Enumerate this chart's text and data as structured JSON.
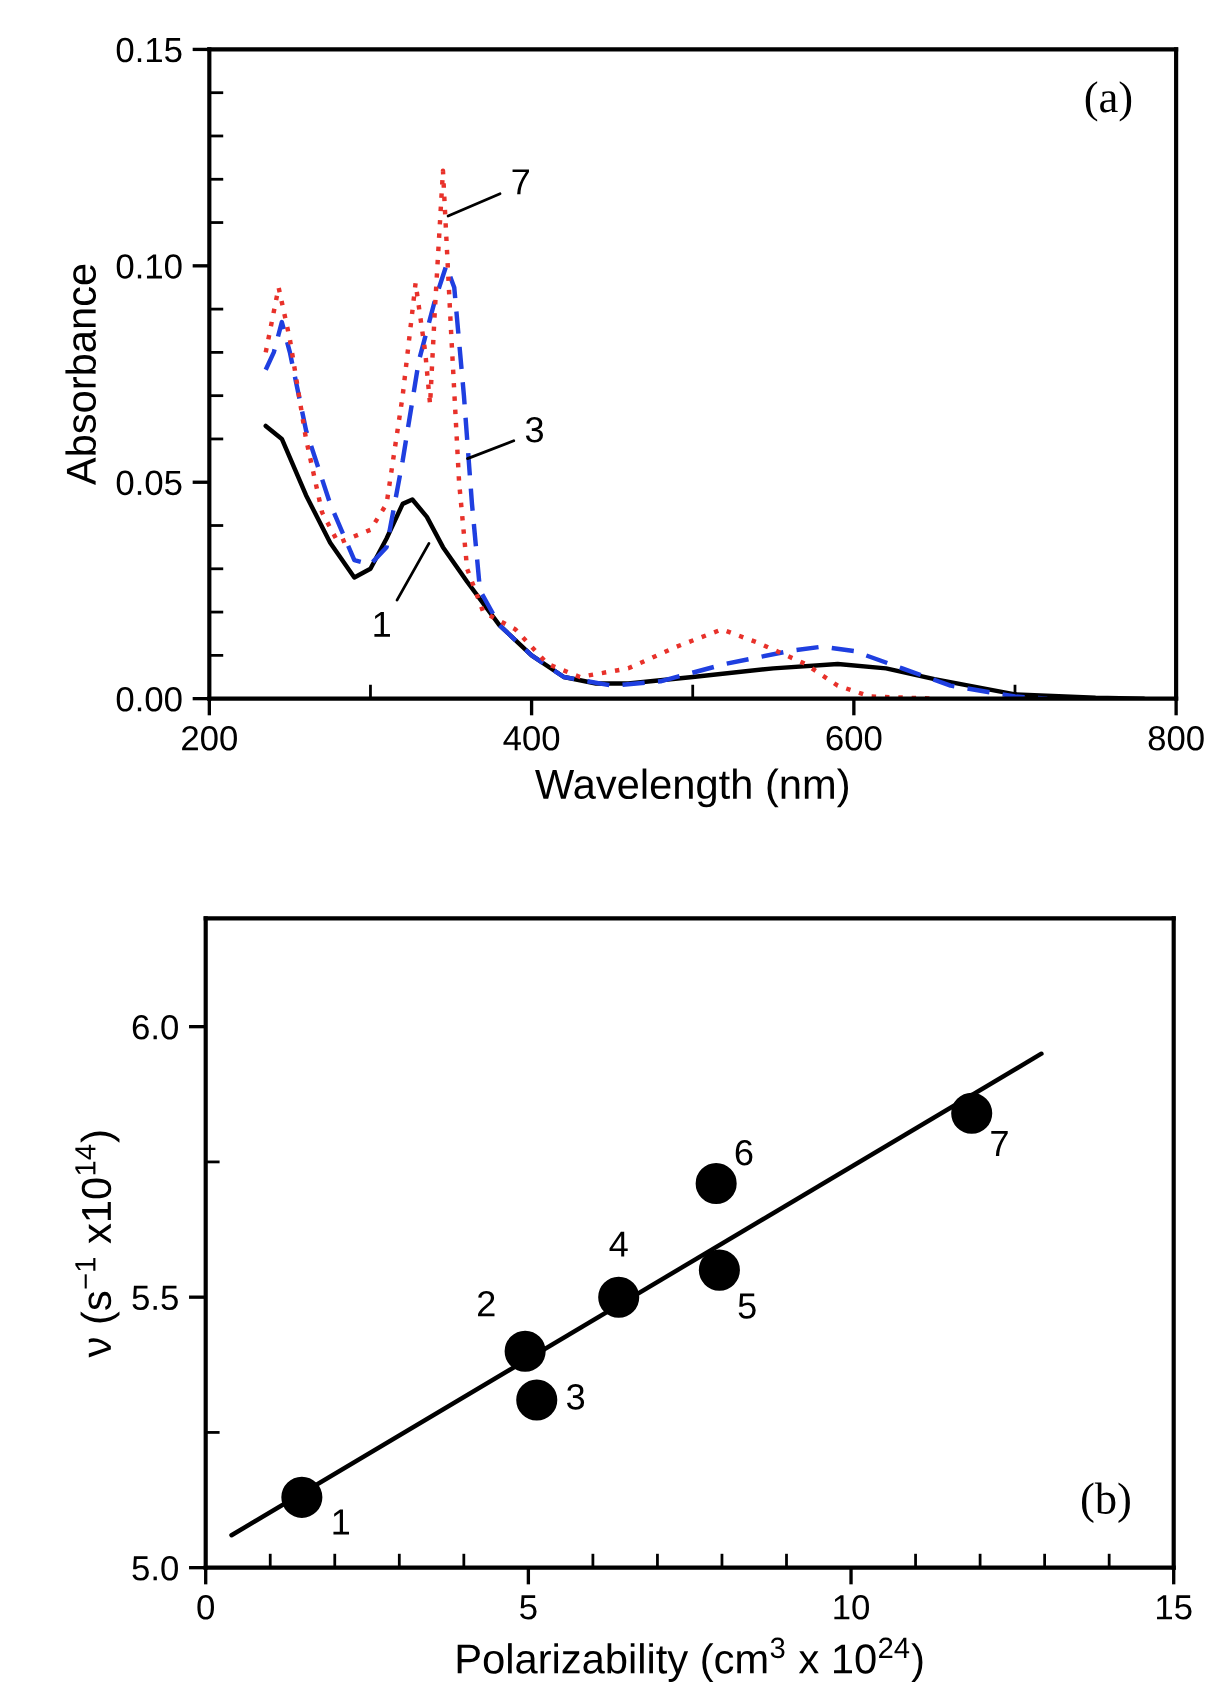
{
  "chart_data": [
    {
      "type": "line",
      "xlabel": "Wavelength (nm)",
      "ylabel": "Absorbance",
      "xlim": [
        200,
        800
      ],
      "ylim": [
        0,
        0.15
      ],
      "xticks": [
        200,
        400,
        600,
        800
      ],
      "yticks": [
        {
          "value": 0,
          "label": "0.00"
        },
        {
          "value": 0.05,
          "label": "0.05"
        },
        {
          "value": 0.1,
          "label": "0.10"
        },
        {
          "value": 0.15,
          "label": "0.15"
        }
      ],
      "grid": false,
      "legend": false,
      "marker": "none",
      "series": [
        {
          "color": "#000000",
          "line_style": "solid",
          "x": [
            235,
            245,
            260,
            275,
            290,
            300,
            310,
            320,
            326,
            335,
            345,
            360,
            380,
            400,
            420,
            440,
            460,
            500,
            550,
            590,
            620,
            650,
            700,
            750,
            780
          ],
          "values": [
            0.063,
            0.06,
            0.047,
            0.036,
            0.028,
            0.03,
            0.037,
            0.045,
            0.046,
            0.042,
            0.035,
            0.027,
            0.017,
            0.01,
            0.005,
            0.0035,
            0.0035,
            0.005,
            0.007,
            0.008,
            0.007,
            0.0045,
            0.001,
            0.0002,
            0
          ]
        },
        {
          "color": "#1f3fe0",
          "line_style": "dashed",
          "x": [
            235,
            240,
            245,
            250,
            260,
            275,
            290,
            300,
            310,
            320,
            330,
            340,
            347,
            352,
            358,
            363,
            368,
            380,
            400,
            420,
            450,
            480,
            520,
            560,
            580,
            600,
            630,
            660,
            700,
            720
          ],
          "values": [
            0.076,
            0.08,
            0.087,
            0.08,
            0.062,
            0.045,
            0.032,
            0.031,
            0.035,
            0.055,
            0.078,
            0.092,
            0.1,
            0.095,
            0.07,
            0.045,
            0.025,
            0.017,
            0.01,
            0.005,
            0.003,
            0.004,
            0.008,
            0.011,
            0.012,
            0.011,
            0.007,
            0.003,
            0.0005,
            0
          ]
        },
        {
          "color": "#e8312a",
          "line_style": "dotted",
          "x": [
            235,
            243,
            250,
            260,
            270,
            280,
            300,
            310,
            320,
            328,
            334,
            337,
            340,
            345,
            350,
            355,
            360,
            370,
            390,
            410,
            430,
            460,
            490,
            518,
            540,
            570,
            590,
            610,
            650
          ],
          "values": [
            0.08,
            0.095,
            0.083,
            0.06,
            0.043,
            0.036,
            0.039,
            0.045,
            0.07,
            0.096,
            0.08,
            0.068,
            0.09,
            0.122,
            0.085,
            0.05,
            0.03,
            0.02,
            0.016,
            0.008,
            0.005,
            0.007,
            0.012,
            0.016,
            0.013,
            0.008,
            0.003,
            0.0005,
            0
          ]
        }
      ],
      "annotations": [
        {
          "text": "7",
          "x": 345,
          "y": 0.111
        },
        {
          "text": "3",
          "x": 357,
          "y": 0.055
        },
        {
          "text": "1",
          "x": 338,
          "y": 0.037
        },
        "(a)"
      ]
    },
    {
      "type": "scatter",
      "xlabel": "Polarizability (cm$^{3}$ x 10$^{24}$)",
      "ylabel": "ν (s$^{−1}$ x10$^{14}$)",
      "xlim": [
        0,
        15
      ],
      "ylim": [
        5.0,
        6.2
      ],
      "xticks": [
        0,
        5,
        10,
        15
      ],
      "yticks": [
        {
          "value": 5.0,
          "label": "5.0"
        },
        {
          "value": 5.5,
          "label": "5.5"
        },
        {
          "value": 6.0,
          "label": "6.0"
        }
      ],
      "grid": false,
      "legend": false,
      "series": [
        {
          "type": "scatter",
          "marker": "circle",
          "color": "#000000",
          "x": [
            1.49,
            4.95,
            5.13,
            6.4,
            7.96,
            7.91,
            11.87
          ],
          "values": [
            5.13,
            5.4,
            5.31,
            5.5,
            5.55,
            5.71,
            5.84
          ]
        },
        {
          "type": "line",
          "marker": "none",
          "line_style": "solid",
          "color": "#000000",
          "x": [
            0.4,
            12.95
          ],
          "values": [
            5.06,
            5.95
          ]
        }
      ],
      "annotations": [
        {
          "text": "1",
          "x": 1.49,
          "y": 5.13
        },
        {
          "text": "2",
          "x": 4.95,
          "y": 5.4
        },
        {
          "text": "3",
          "x": 5.13,
          "y": 5.31
        },
        {
          "text": "4",
          "x": 6.4,
          "y": 5.5
        },
        {
          "text": "5",
          "x": 7.96,
          "y": 5.55
        },
        {
          "text": "6",
          "x": 7.91,
          "y": 5.71
        },
        {
          "text": "7",
          "x": 11.87,
          "y": 5.84
        },
        "(b)"
      ]
    }
  ]
}
